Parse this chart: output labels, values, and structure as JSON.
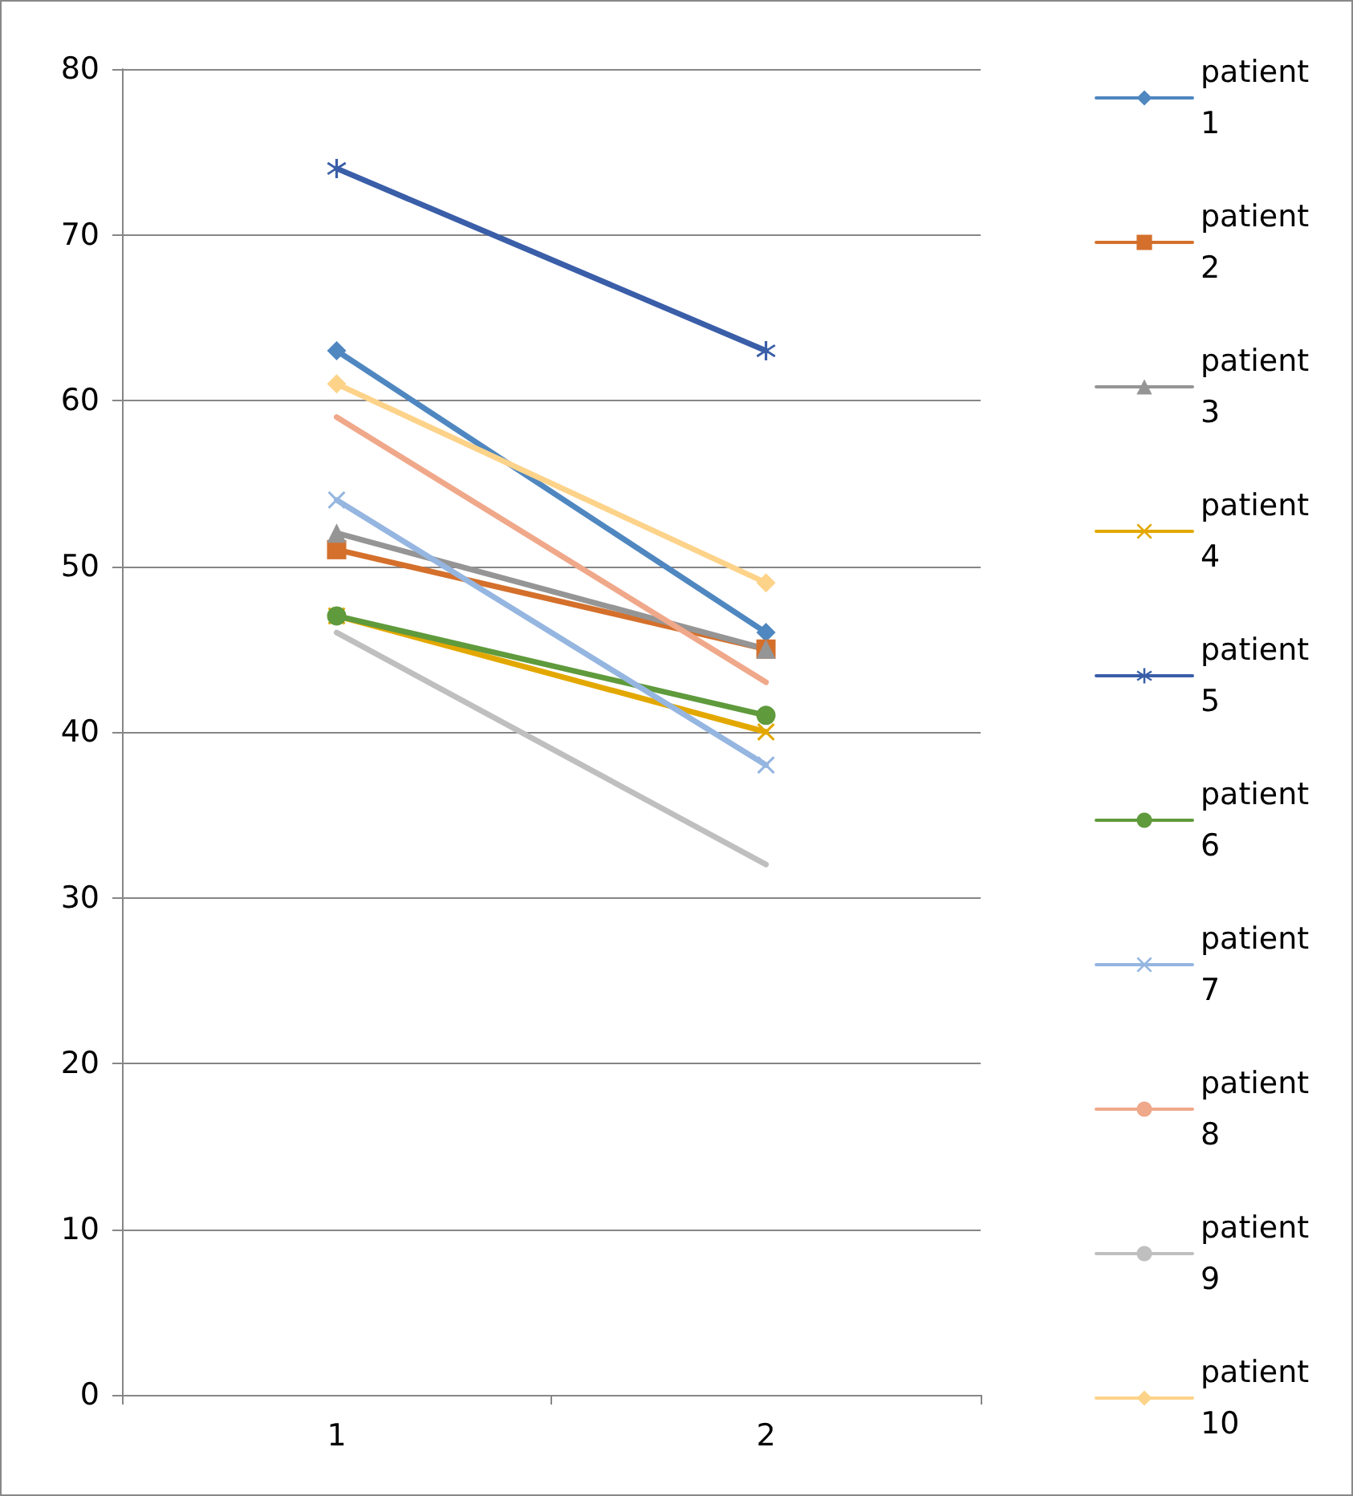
{
  "chart_data": {
    "type": "line",
    "categories": [
      "1",
      "2"
    ],
    "series": [
      {
        "name": "patient 1",
        "color": "#4f87c0",
        "marker": "diamond",
        "values": [
          63,
          46
        ]
      },
      {
        "name": "patient 2",
        "color": "#d4702c",
        "marker": "square",
        "values": [
          51,
          45
        ]
      },
      {
        "name": "patient 3",
        "color": "#959595",
        "marker": "triangle",
        "values": [
          52,
          45
        ]
      },
      {
        "name": "patient 4",
        "color": "#e3a800",
        "marker": "cross",
        "values": [
          47,
          40
        ]
      },
      {
        "name": "patient 5",
        "color": "#3a5ea8",
        "marker": "star",
        "values": [
          74,
          63
        ]
      },
      {
        "name": "patient 6",
        "color": "#5f9a3c",
        "marker": "circle",
        "values": [
          47,
          41
        ]
      },
      {
        "name": "patient 7",
        "color": "#95b6e0",
        "marker": "cross",
        "values": [
          54,
          38
        ]
      },
      {
        "name": "patient 8",
        "color": "#f0a88a",
        "marker": "none",
        "values": [
          59,
          43
        ]
      },
      {
        "name": "patient 9",
        "color": "#bfbfbf",
        "marker": "none",
        "values": [
          46,
          32
        ]
      },
      {
        "name": "patient 10",
        "color": "#fdd38a",
        "marker": "diamond",
        "values": [
          61,
          49
        ]
      }
    ],
    "ylim": [
      0,
      80
    ],
    "yticks": [
      0,
      10,
      20,
      30,
      40,
      50,
      60,
      70,
      80
    ],
    "grid": "y",
    "legend": "right"
  }
}
